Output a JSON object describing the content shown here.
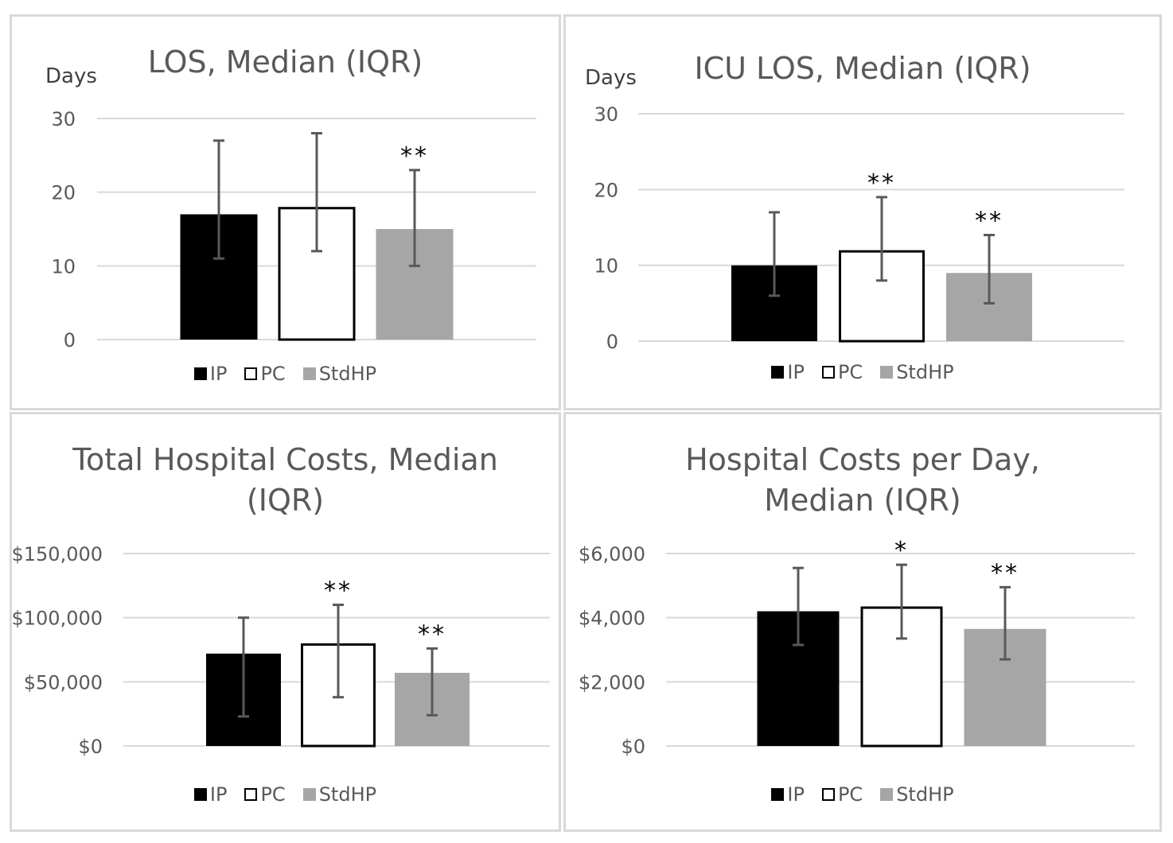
{
  "legend": [
    {
      "key": "IP",
      "label": "IP",
      "fill": "#000000",
      "stroke": "#000000"
    },
    {
      "key": "PC",
      "label": "PC",
      "fill": "#ffffff",
      "stroke": "#000000"
    },
    {
      "key": "StdHP",
      "label": "StdHP",
      "fill": "#a6a6a6",
      "stroke": "#a6a6a6"
    }
  ],
  "chart_data": [
    {
      "type": "bar",
      "title": "LOS, Median (IQR)",
      "unit_label": "Days",
      "categories": [
        "IP",
        "PC",
        "StdHP"
      ],
      "values": [
        17,
        18,
        15
      ],
      "error_low": [
        11,
        12,
        10
      ],
      "error_high": [
        27,
        28,
        23
      ],
      "significance": [
        "",
        "",
        "**"
      ],
      "ylim": [
        0,
        30
      ],
      "yticks": [
        0,
        10,
        20,
        30
      ],
      "ytick_labels": [
        "0",
        "10",
        "20",
        "30"
      ],
      "grid": true,
      "legend_position": "bottom"
    },
    {
      "type": "bar",
      "title": "ICU LOS, Median (IQR)",
      "unit_label": "Days",
      "categories": [
        "IP",
        "PC",
        "StdHP"
      ],
      "values": [
        10,
        12,
        9
      ],
      "error_low": [
        6,
        8,
        5
      ],
      "error_high": [
        17,
        19,
        14
      ],
      "significance": [
        "",
        "**",
        "**"
      ],
      "ylim": [
        0,
        30
      ],
      "yticks": [
        0,
        10,
        20,
        30
      ],
      "ytick_labels": [
        "0",
        "10",
        "20",
        "30"
      ],
      "grid": true,
      "legend_position": "bottom"
    },
    {
      "type": "bar",
      "title": "Total Hospital Costs, Median (IQR)",
      "unit_label": "",
      "categories": [
        "IP",
        "PC",
        "StdHP"
      ],
      "values": [
        72000,
        80000,
        57000
      ],
      "error_low": [
        23000,
        38000,
        24000
      ],
      "error_high": [
        100000,
        110000,
        76000
      ],
      "significance": [
        "",
        "**",
        "**"
      ],
      "ylim": [
        0,
        150000
      ],
      "yticks": [
        0,
        50000,
        100000,
        150000
      ],
      "ytick_labels": [
        "$0",
        "$50,000",
        "$100,000",
        "$150,000"
      ],
      "grid": true,
      "legend_position": "bottom"
    },
    {
      "type": "bar",
      "title": "Hospital Costs per Day, Median (IQR)",
      "unit_label": "",
      "categories": [
        "IP",
        "PC",
        "StdHP"
      ],
      "values": [
        4200,
        4350,
        3650
      ],
      "error_low": [
        3150,
        3350,
        2700
      ],
      "error_high": [
        5550,
        5650,
        4950
      ],
      "significance": [
        "",
        "*",
        "**"
      ],
      "ylim": [
        0,
        6000
      ],
      "yticks": [
        0,
        2000,
        4000,
        6000
      ],
      "ytick_labels": [
        "$0",
        "$2,000",
        "$4,000",
        "$6,000"
      ],
      "grid": true,
      "legend_position": "bottom"
    }
  ]
}
